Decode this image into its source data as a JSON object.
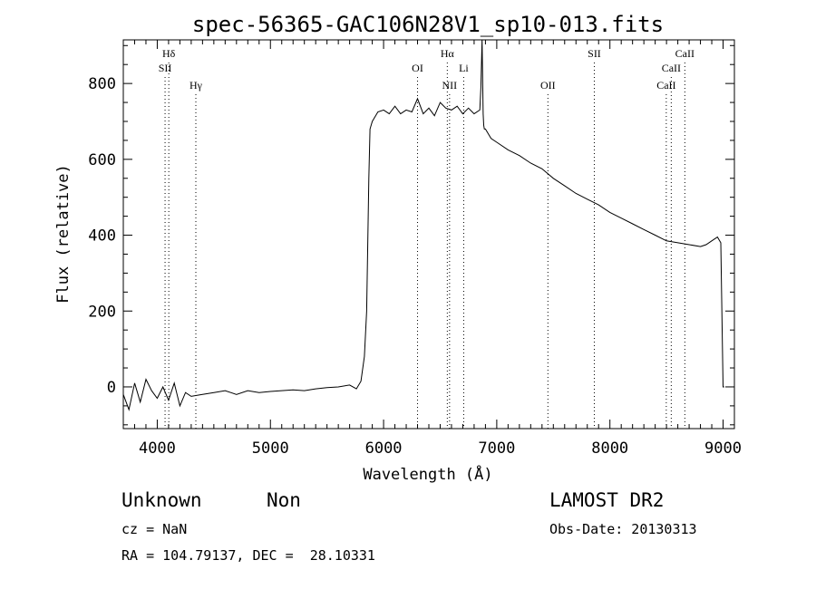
{
  "chart_data": {
    "type": "line",
    "title": "spec-56365-GAC106N28V1_sp10-013.fits",
    "xlabel": "Wavelength (Å)",
    "ylabel": "Flux (relative)",
    "xlim": [
      3700,
      9100
    ],
    "ylim": [
      -110,
      915
    ],
    "x_ticks": [
      4000,
      5000,
      6000,
      7000,
      8000,
      9000
    ],
    "y_ticks": [
      0,
      200,
      400,
      600,
      800
    ],
    "grid": false,
    "series": [
      {
        "x": [
          3700,
          3750,
          3800,
          3850,
          3900,
          3950,
          4000,
          4050,
          4100,
          4150,
          4200,
          4250,
          4300,
          4400,
          4500,
          4600,
          4700,
          4800,
          4900,
          5000,
          5100,
          5200,
          5300,
          5400,
          5500,
          5600,
          5700,
          5760,
          5800,
          5830,
          5850,
          5870,
          5880,
          5900,
          5950,
          6000,
          6050,
          6100,
          6150,
          6200,
          6250,
          6300,
          6350,
          6400,
          6450,
          6500,
          6550,
          6600,
          6650,
          6700,
          6750,
          6800,
          6850,
          6860,
          6870,
          6880,
          6885,
          6890,
          6900,
          6950,
          7000,
          7100,
          7200,
          7300,
          7400,
          7500,
          7600,
          7700,
          7800,
          7900,
          8000,
          8100,
          8200,
          8300,
          8400,
          8500,
          8600,
          8700,
          8800,
          8850,
          8900,
          8950,
          8980,
          9000,
          9010
        ],
        "y": [
          -20,
          -60,
          10,
          -40,
          20,
          -10,
          -30,
          0,
          -35,
          10,
          -50,
          -15,
          -25,
          -20,
          -15,
          -10,
          -20,
          -10,
          -15,
          -12,
          -10,
          -8,
          -10,
          -5,
          -2,
          0,
          5,
          -5,
          15,
          80,
          200,
          550,
          680,
          700,
          725,
          730,
          720,
          740,
          720,
          730,
          725,
          760,
          720,
          735,
          715,
          750,
          735,
          730,
          740,
          720,
          735,
          720,
          730,
          790,
          915,
          720,
          690,
          680,
          680,
          655,
          645,
          625,
          610,
          590,
          575,
          550,
          530,
          510,
          495,
          480,
          460,
          445,
          430,
          415,
          400,
          385,
          380,
          375,
          370,
          375,
          385,
          395,
          380,
          0,
          0
        ]
      }
    ],
    "line_markers": [
      {
        "label": "Hδ",
        "x": 4102,
        "row": 1
      },
      {
        "label": "SII",
        "x": 4069,
        "row": 2
      },
      {
        "label": "Hγ",
        "x": 4341,
        "row": 3
      },
      {
        "label": "OI",
        "x": 6300,
        "row": 2
      },
      {
        "label": "Hα",
        "x": 6563,
        "row": 1
      },
      {
        "label": "NII",
        "x": 6583,
        "row": 3
      },
      {
        "label": "Li",
        "x": 6708,
        "row": 2
      },
      {
        "label": "OII",
        "x": 7452,
        "row": 3
      },
      {
        "label": "SII",
        "x": 7862,
        "row": 1
      },
      {
        "label": "CaII",
        "x": 8662,
        "row": 1
      },
      {
        "label": "CaII",
        "x": 8542,
        "row": 2
      },
      {
        "label": "CaII",
        "x": 8498,
        "row": 3
      }
    ]
  },
  "footer": {
    "class_label": "Unknown",
    "subclass_label": "Non",
    "survey": "LAMOST DR2",
    "cz": "cz = NaN",
    "obs_date": "Obs-Date: 20130313",
    "coords": "RA = 104.79137, DEC =  28.10331"
  }
}
